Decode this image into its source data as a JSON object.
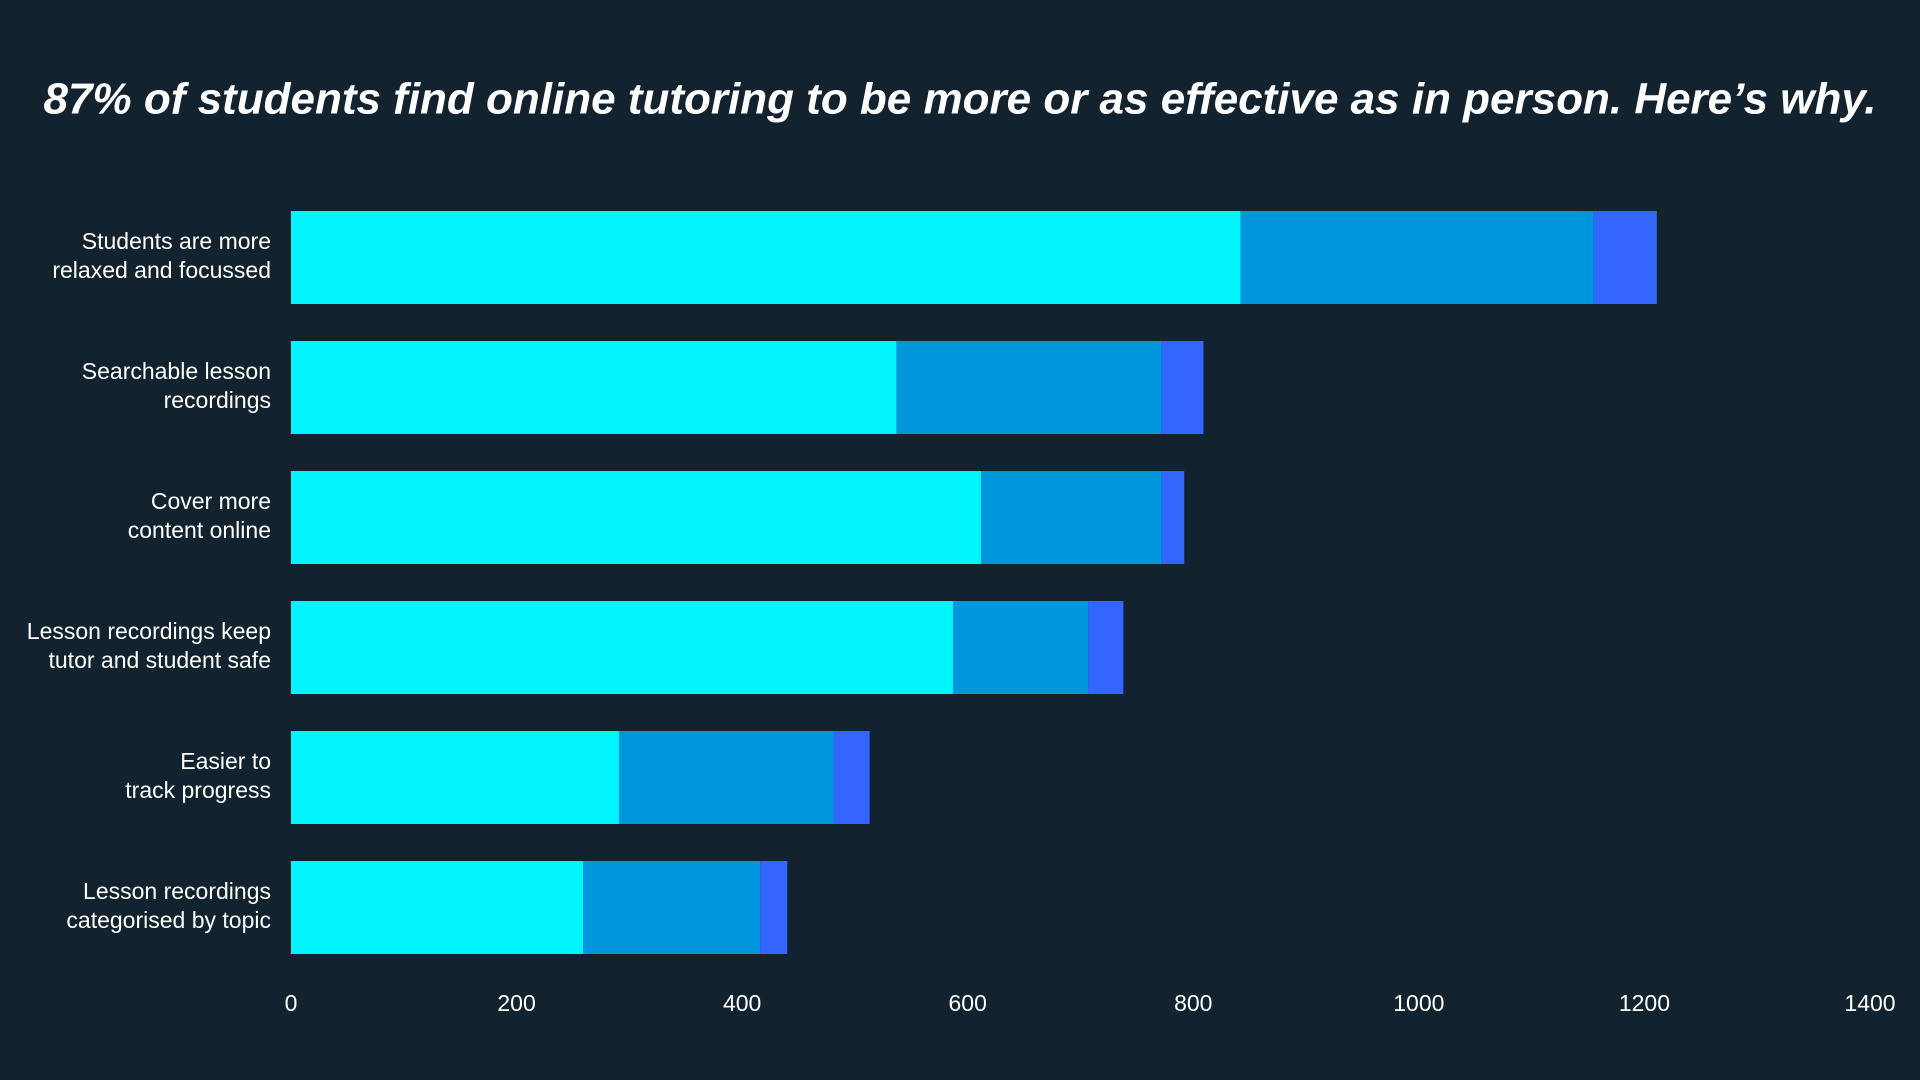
{
  "chart_data": {
    "type": "stacked-barh",
    "title": "87% of students find online tutoring to be more or as effective as in person. Here’s why.",
    "categories": [
      [
        "Students are more",
        "relaxed and focussed"
      ],
      [
        "Searchable lesson",
        "recordings"
      ],
      [
        "Cover more",
        "content online"
      ],
      [
        "Lesson recordings keep",
        "tutor and student safe"
      ],
      [
        "Easier to",
        "track progress"
      ],
      [
        "Lesson recordings",
        "categorised by topic"
      ]
    ],
    "series": [
      {
        "color": "#00f5ff",
        "values": [
          842,
          537,
          612,
          587,
          291,
          259
        ]
      },
      {
        "color": "#0096dc",
        "values": [
          313,
          235,
          160,
          120,
          190,
          157
        ]
      },
      {
        "color": "#3366ff",
        "values": [
          56,
          37,
          20,
          31,
          32,
          24
        ]
      }
    ],
    "xlim": [
      0,
      1400
    ],
    "xticks": [
      0,
      200,
      400,
      600,
      800,
      1000,
      1200,
      1400
    ],
    "grid": false
  }
}
